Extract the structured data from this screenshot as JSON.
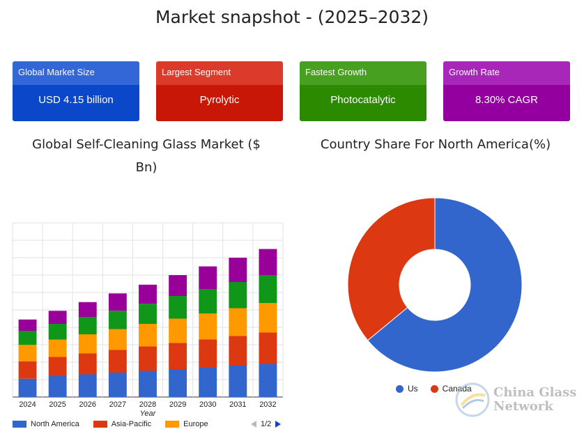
{
  "title": "Market snapshot - (2025–2032)",
  "cards": [
    {
      "label": "Global Market Size",
      "value": "USD 4.15 billion",
      "head_color": "#3366d6",
      "body_color": "#0a47c9"
    },
    {
      "label": "Largest Segment",
      "value": "Pyrolytic",
      "head_color": "#dc3b2c",
      "body_color": "#c81607"
    },
    {
      "label": "Fastest Growth",
      "value": "Photocatalytic",
      "head_color": "#47a020",
      "body_color": "#2c8a00"
    },
    {
      "label": "Growth Rate",
      "value": "8.30% CAGR",
      "head_color": "#a826b8",
      "body_color": "#93009f"
    }
  ],
  "bar_chart_title": "Global Self-Cleaning Glass Market ($ Bn)",
  "donut_chart_title": "Country Share For North America(%)",
  "pager_text": "1/2",
  "watermark": {
    "line1": "China Glass",
    "line2": "Network"
  },
  "chart_data": [
    {
      "type": "bar",
      "stacked": true,
      "title": "Global Self-Cleaning Glass Market ($ Bn)",
      "xlabel": "Year",
      "ylabel": "",
      "categories": [
        "2024",
        "2025",
        "2026",
        "2027",
        "2028",
        "2029",
        "2030",
        "2031",
        "2032"
      ],
      "series": [
        {
          "name": "North America",
          "color": "#3366cc",
          "values": [
            1.05,
            1.2,
            1.3,
            1.4,
            1.5,
            1.6,
            1.7,
            1.8,
            1.9
          ]
        },
        {
          "name": "Asia-Pacific",
          "color": "#dc3912",
          "values": [
            1.0,
            1.1,
            1.2,
            1.3,
            1.4,
            1.5,
            1.6,
            1.7,
            1.8
          ]
        },
        {
          "name": "Europe",
          "color": "#ff9900",
          "values": [
            0.95,
            1.0,
            1.1,
            1.2,
            1.3,
            1.4,
            1.5,
            1.6,
            1.7
          ]
        },
        {
          "name": "",
          "color": "#109618",
          "values": [
            0.8,
            0.9,
            1.0,
            1.05,
            1.15,
            1.3,
            1.4,
            1.5,
            1.6
          ]
        },
        {
          "name": "",
          "color": "#990099",
          "values": [
            0.65,
            0.75,
            0.85,
            1.0,
            1.1,
            1.2,
            1.3,
            1.4,
            1.5
          ]
        }
      ],
      "ylim": [
        0,
        10
      ],
      "grid": true,
      "legend_position": "bottom"
    },
    {
      "type": "pie",
      "donut": true,
      "title": "Country Share For North America(%)",
      "slices": [
        {
          "label": "Us",
          "value": 64,
          "color": "#3366cc"
        },
        {
          "label": "Canada",
          "value": 36,
          "color": "#dc3912"
        }
      ],
      "legend_position": "bottom"
    }
  ]
}
